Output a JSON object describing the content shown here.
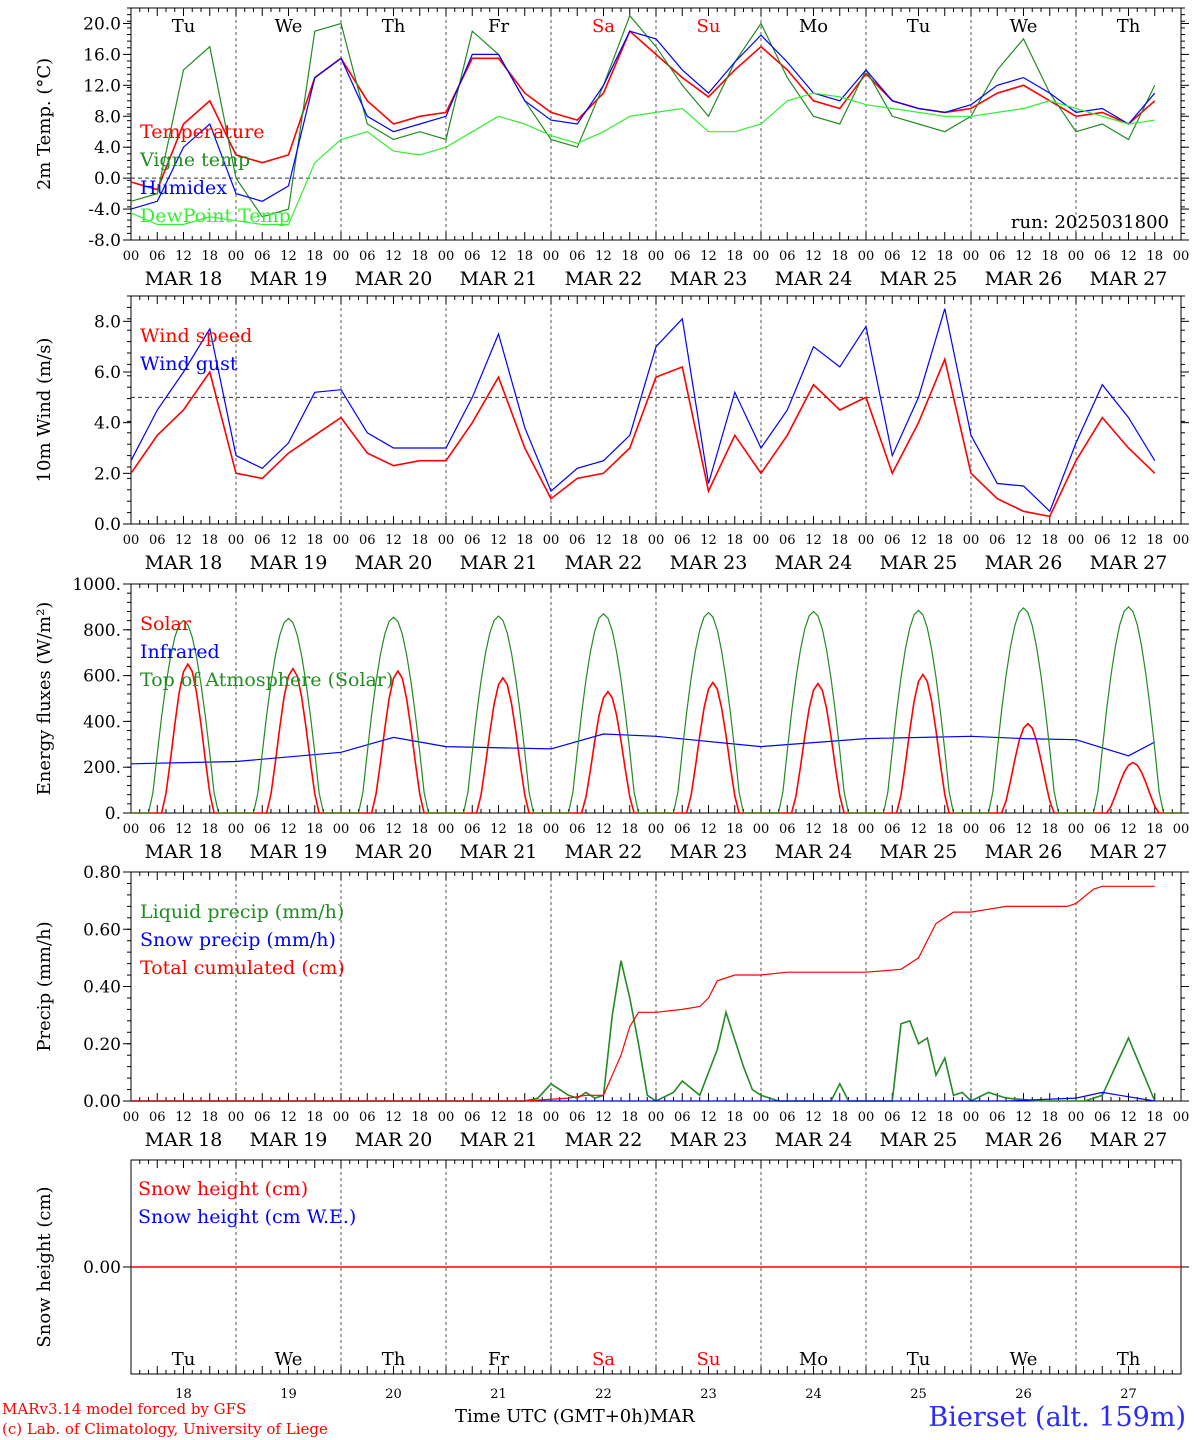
{
  "chart_data": [
    {
      "type": "line",
      "ylabel": "2m Temp. (°C)",
      "ylim": [
        -8,
        22
      ],
      "yticks": [
        "-8.0",
        "-4.0",
        "0.0",
        "4.0",
        "8.0",
        "12.0",
        "16.0",
        "20.0"
      ],
      "ref_line": 0,
      "annotation": "run: 2025031800",
      "legend_placement": "left",
      "series": [
        {
          "name": "Temperature",
          "color": "#ff0000",
          "x": [
            0,
            6,
            12,
            18,
            24,
            30,
            36,
            42,
            48,
            54,
            60,
            66,
            72,
            78,
            84,
            90,
            96,
            102,
            108,
            114,
            120,
            126,
            132,
            138,
            144,
            150,
            156,
            162,
            168,
            174,
            180,
            186,
            192,
            198,
            204,
            210,
            216,
            222,
            228,
            234
          ],
          "values": [
            -0.5,
            -1.5,
            7,
            10,
            3,
            2,
            3,
            13,
            15.5,
            10,
            7,
            8,
            8.5,
            15.5,
            15.5,
            11,
            8.5,
            7.5,
            11,
            19,
            16,
            13,
            10.5,
            14,
            17,
            14,
            10,
            9,
            13.5,
            10,
            9,
            8.5,
            9,
            11,
            12,
            10,
            8,
            8.5,
            7,
            10
          ]
        },
        {
          "name": "Vigne temp",
          "color": "#228b22",
          "x": [
            0,
            6,
            12,
            18,
            24,
            30,
            36,
            42,
            48,
            54,
            60,
            66,
            72,
            78,
            84,
            90,
            96,
            102,
            108,
            114,
            120,
            126,
            132,
            138,
            144,
            150,
            156,
            162,
            168,
            174,
            180,
            186,
            192,
            198,
            204,
            210,
            216,
            222,
            228,
            234
          ],
          "values": [
            -3,
            -2,
            14,
            17,
            0,
            -5,
            -4,
            19,
            20,
            7,
            5,
            6,
            5,
            19,
            16,
            10,
            5,
            4,
            12,
            21,
            17,
            12,
            8,
            15,
            20,
            13,
            8,
            7,
            14,
            8,
            7,
            6,
            8,
            14,
            18,
            11,
            6,
            7,
            5,
            12
          ]
        },
        {
          "name": "Humidex",
          "color": "#0000ff",
          "x": [
            0,
            6,
            12,
            18,
            24,
            30,
            36,
            42,
            48,
            54,
            60,
            66,
            72,
            78,
            84,
            90,
            96,
            102,
            108,
            114,
            120,
            126,
            132,
            138,
            144,
            150,
            156,
            162,
            168,
            174,
            180,
            186,
            192,
            198,
            204,
            210,
            216,
            222,
            228,
            234
          ],
          "values": [
            -4,
            -3,
            4,
            7,
            -2,
            -3,
            -1,
            13,
            15.5,
            8,
            6,
            7,
            8,
            16,
            16,
            10,
            7.5,
            7,
            12,
            19,
            18,
            14,
            11,
            15,
            18.5,
            15,
            11,
            10,
            14,
            10,
            9,
            8.5,
            9.5,
            12,
            13,
            11,
            8.5,
            9,
            7,
            11
          ]
        },
        {
          "name": "DewPoint Temp",
          "color": "#33ee33",
          "x": [
            0,
            6,
            12,
            18,
            24,
            30,
            36,
            42,
            48,
            54,
            60,
            66,
            72,
            78,
            84,
            90,
            96,
            102,
            108,
            114,
            120,
            126,
            132,
            138,
            144,
            150,
            156,
            162,
            168,
            174,
            180,
            186,
            192,
            198,
            204,
            210,
            216,
            222,
            228,
            234
          ],
          "values": [
            -4.5,
            -6,
            -6,
            -5,
            -5.5,
            -6,
            -6,
            2,
            5,
            6,
            3.5,
            3,
            4,
            6,
            8,
            7,
            5.5,
            4.5,
            6,
            8,
            8.5,
            9,
            6,
            6,
            7,
            10,
            11,
            10.5,
            9.5,
            9,
            8.5,
            8,
            8,
            8.5,
            9,
            10,
            9,
            8,
            7,
            7.5
          ]
        }
      ]
    },
    {
      "type": "line",
      "ylabel": "10m Wind (m/s)",
      "ylim": [
        0,
        9
      ],
      "yticks": [
        "0.0",
        "2.0",
        "4.0",
        "6.0",
        "8.0"
      ],
      "ref_line": 5,
      "legend_placement": "left",
      "series": [
        {
          "name": "Wind speed",
          "color": "#ff0000",
          "x": [
            0,
            6,
            12,
            18,
            24,
            30,
            36,
            42,
            48,
            54,
            60,
            66,
            72,
            78,
            84,
            90,
            96,
            102,
            108,
            114,
            120,
            126,
            132,
            138,
            144,
            150,
            156,
            162,
            168,
            174,
            180,
            186,
            192,
            198,
            204,
            210,
            216,
            222,
            228,
            234
          ],
          "values": [
            2.0,
            3.5,
            4.5,
            6.0,
            2.0,
            1.8,
            2.8,
            3.5,
            4.2,
            2.8,
            2.3,
            2.5,
            2.5,
            4.0,
            5.8,
            3.0,
            1.0,
            1.8,
            2.0,
            3.0,
            5.8,
            6.2,
            1.3,
            3.5,
            2.0,
            3.5,
            5.5,
            4.5,
            5.0,
            2.0,
            4.0,
            6.5,
            2.0,
            1.0,
            0.5,
            0.3,
            2.5,
            4.2,
            3.0,
            2.0
          ]
        },
        {
          "name": "Wind gust",
          "color": "#0000ff",
          "x": [
            0,
            6,
            12,
            18,
            24,
            30,
            36,
            42,
            48,
            54,
            60,
            66,
            72,
            78,
            84,
            90,
            96,
            102,
            108,
            114,
            120,
            126,
            132,
            138,
            144,
            150,
            156,
            162,
            168,
            174,
            180,
            186,
            192,
            198,
            204,
            210,
            216,
            222,
            228,
            234
          ],
          "values": [
            2.5,
            4.5,
            6.0,
            7.7,
            2.7,
            2.2,
            3.2,
            5.2,
            5.3,
            3.6,
            3.0,
            3.0,
            3.0,
            5.0,
            7.5,
            3.8,
            1.3,
            2.2,
            2.5,
            3.5,
            7.0,
            8.1,
            1.6,
            5.2,
            3.0,
            4.5,
            7.0,
            6.2,
            7.8,
            2.7,
            5.0,
            8.5,
            3.5,
            1.6,
            1.5,
            0.5,
            3.2,
            5.5,
            4.2,
            2.5
          ]
        }
      ]
    },
    {
      "type": "line",
      "ylabel": "Energy fluxes (W/m²)",
      "ylim": [
        0,
        1000
      ],
      "yticks": [
        "0.",
        "200.",
        "400.",
        "600.",
        "800.",
        "1000."
      ],
      "legend_placement": "left",
      "series": [
        {
          "name": "Solar",
          "color": "#ff0000",
          "peak_hour_offset": 13,
          "daily_peaks": [
            650,
            630,
            620,
            590,
            530,
            570,
            565,
            605,
            390,
            220
          ]
        },
        {
          "name": "Infrared",
          "color": "#0000ff",
          "x": [
            0,
            24,
            48,
            60,
            72,
            96,
            108,
            120,
            144,
            168,
            192,
            204,
            216,
            228,
            234
          ],
          "values": [
            215,
            225,
            265,
            330,
            290,
            280,
            345,
            335,
            290,
            325,
            335,
            325,
            320,
            250,
            310
          ]
        },
        {
          "name": "Top of Atmosphere (Solar)",
          "color": "#228b22",
          "peak_hour_offset": 12,
          "daily_peaks": [
            840,
            850,
            855,
            860,
            870,
            875,
            880,
            885,
            895,
            900
          ]
        }
      ]
    },
    {
      "type": "line",
      "ylabel": "Precip (mm/h)",
      "ylim": [
        0,
        0.8
      ],
      "yticks": [
        "0.00",
        "0.20",
        "0.40",
        "0.60",
        "0.80"
      ],
      "legend_placement": "left",
      "series": [
        {
          "name": "Liquid precip (mm/h)",
          "color": "#228b22",
          "x": [
            0,
            90,
            93,
            96,
            100,
            102,
            104,
            106,
            108,
            110,
            112,
            114,
            116,
            118,
            120,
            124,
            126,
            130,
            134,
            136,
            140,
            142,
            144,
            146,
            148,
            150,
            160,
            162,
            164,
            168,
            172,
            174,
            176,
            178,
            180,
            182,
            184,
            186,
            188,
            190,
            192,
            196,
            200,
            208,
            210,
            212,
            214,
            216,
            218,
            220,
            222,
            228,
            234
          ],
          "values": [
            0,
            0,
            0.01,
            0.06,
            0.02,
            0.01,
            0.03,
            0.01,
            0.02,
            0.3,
            0.49,
            0.36,
            0.2,
            0.02,
            0,
            0.03,
            0.07,
            0.02,
            0.18,
            0.31,
            0.12,
            0.04,
            0.02,
            0.01,
            0,
            0,
            0,
            0.06,
            0,
            0,
            0,
            0,
            0.27,
            0.28,
            0.2,
            0.22,
            0.09,
            0.15,
            0.02,
            0.03,
            0,
            0.03,
            0.01,
            0,
            0,
            0,
            0,
            0,
            0,
            0.01,
            0.02,
            0.22,
            0
          ]
        },
        {
          "name": "Snow precip (mm/h)",
          "color": "#0000ff",
          "x": [
            0,
            100,
            200,
            216,
            222,
            226,
            234
          ],
          "values": [
            0,
            0,
            0,
            0.01,
            0.03,
            0.02,
            0
          ]
        },
        {
          "name": "Total cumulated (cm)",
          "color": "#ff0000",
          "x": [
            0,
            90,
            100,
            104,
            108,
            112,
            114,
            116,
            120,
            126,
            130,
            132,
            134,
            138,
            144,
            150,
            156,
            162,
            168,
            176,
            180,
            184,
            188,
            192,
            196,
            200,
            208,
            214,
            216,
            220,
            222,
            234
          ],
          "values": [
            0,
            0,
            0.01,
            0.02,
            0.02,
            0.16,
            0.26,
            0.31,
            0.31,
            0.32,
            0.33,
            0.36,
            0.42,
            0.44,
            0.44,
            0.45,
            0.45,
            0.45,
            0.45,
            0.46,
            0.5,
            0.62,
            0.66,
            0.66,
            0.67,
            0.68,
            0.68,
            0.68,
            0.69,
            0.74,
            0.75,
            0.75
          ]
        }
      ]
    },
    {
      "type": "line",
      "ylabel": "Snow height (cm)",
      "yticks": [
        "0.00"
      ],
      "legend_placement": "left",
      "series": [
        {
          "name": "Snow height (cm)",
          "color": "#ff0000",
          "x": [
            0,
            240
          ],
          "values": [
            0,
            0
          ]
        },
        {
          "name": "Snow height (cm W.E.)",
          "color": "#0000ff",
          "x": [],
          "values": []
        }
      ]
    }
  ],
  "time_axis": {
    "hour_ticks": [
      "00",
      "06",
      "12",
      "18"
    ],
    "date_labels": [
      "MAR 18",
      "MAR 19",
      "MAR 20",
      "MAR 21",
      "MAR 22",
      "MAR 23",
      "MAR 24",
      "MAR 25",
      "MAR 26",
      "MAR 27"
    ],
    "day_names": [
      "Tu",
      "We",
      "Th",
      "Fr",
      "Sa",
      "Su",
      "Mo",
      "Tu",
      "We",
      "Th"
    ],
    "weekend_color": "#ff0000",
    "weekday_color": "#000000",
    "day_numbers": [
      "18",
      "19",
      "20",
      "21",
      "22",
      "23",
      "24",
      "25",
      "26",
      "27"
    ],
    "title": "Time UTC (GMT+0h)",
    "month": "MAR"
  },
  "footer": {
    "credit_line1": "MARv3.14 model forced by GFS",
    "credit_line2": "(c) Lab. of Climatology, University of Liege",
    "station": "Bierset (alt. 159m)"
  }
}
